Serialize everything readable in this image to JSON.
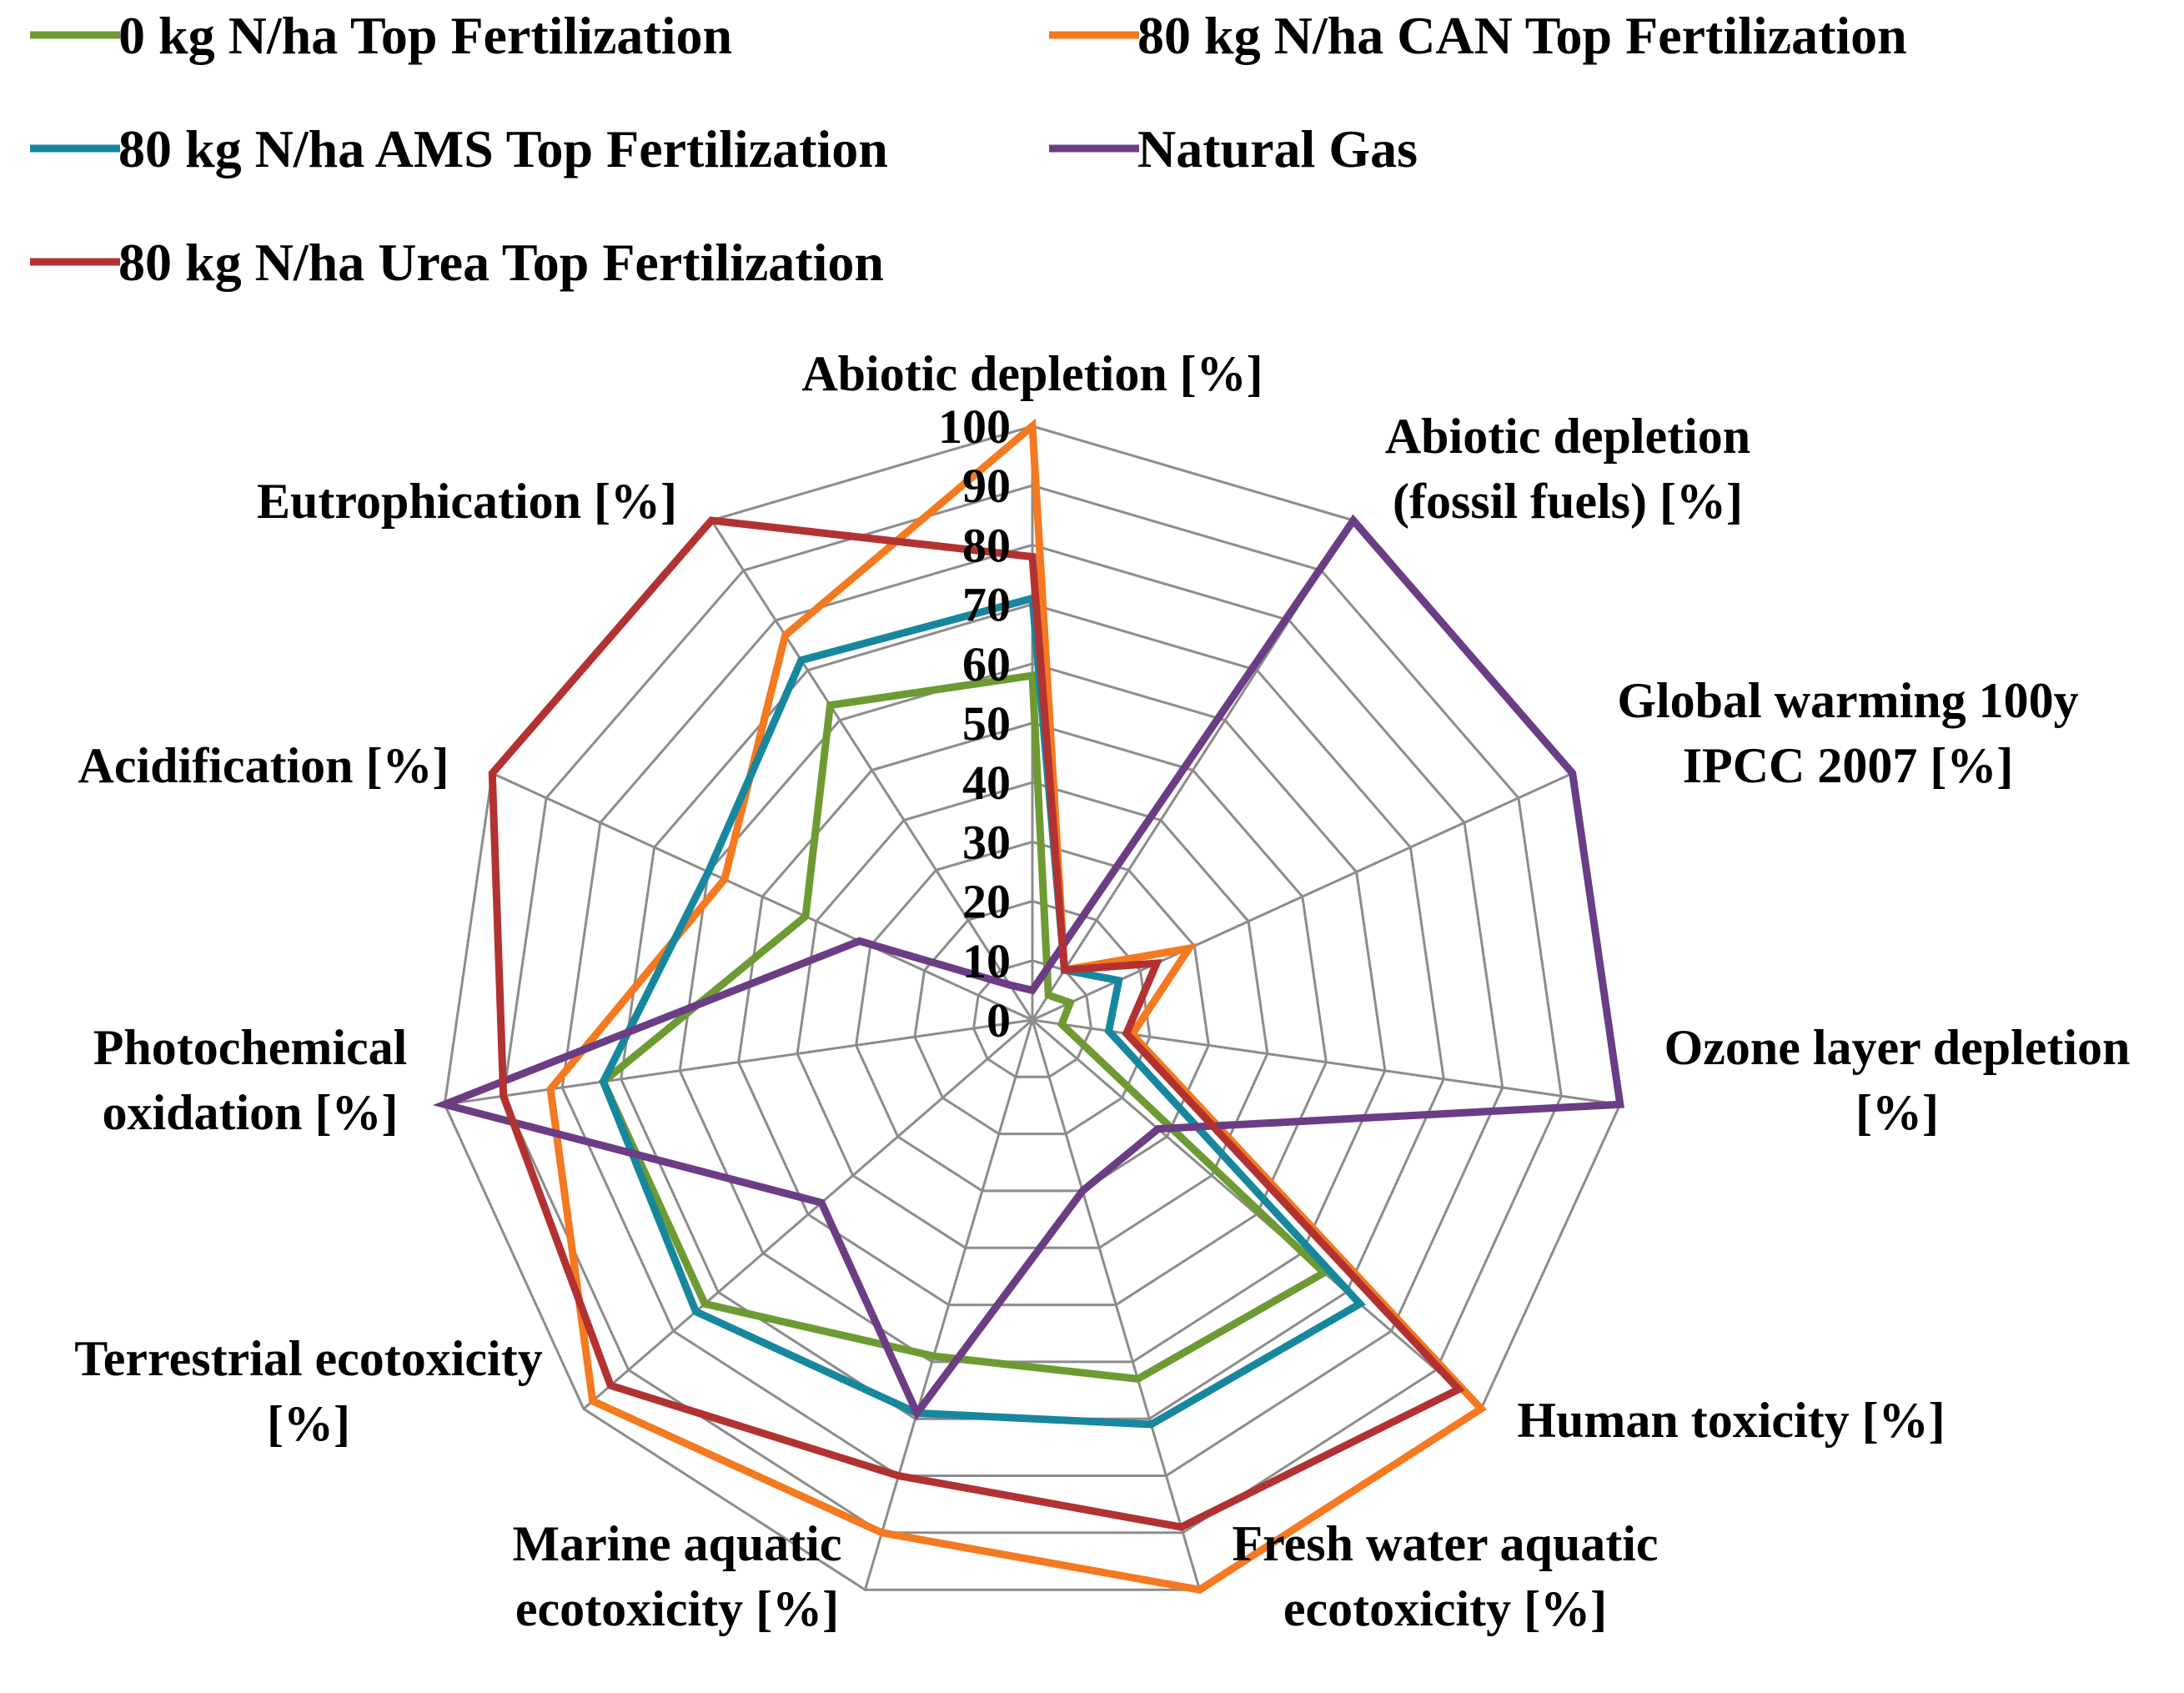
{
  "chart_data": {
    "type": "radar",
    "title": "",
    "axes": [
      "Abiotic depletion [%]",
      "Abiotic depletion (fossil fuels) [%]",
      "Global warming 100y IPCC 2007 [%]",
      "Ozone layer depletion [%]",
      "Human toxicity [%]",
      "Fresh water aquatic ecotoxicity [%]",
      "Marine aquatic ecotoxicity [%]",
      "Terrestrial ecotoxicity [%]",
      "Photochemical oxidation [%]",
      "Acidification [%]",
      "Eutrophication [%]"
    ],
    "axis_label_lines": [
      [
        "Abiotic depletion [%]"
      ],
      [
        "Abiotic depletion",
        "(fossil fuels) [%]"
      ],
      [
        "Global warming 100y",
        "IPCC 2007 [%]"
      ],
      [
        "Ozone layer depletion",
        "[%]"
      ],
      [
        "Human toxicity [%]"
      ],
      [
        "Fresh water aquatic",
        "ecotoxicity [%]"
      ],
      [
        "Marine aquatic",
        "ecotoxicity [%]"
      ],
      [
        "Terrestrial ecotoxicity",
        "[%]"
      ],
      [
        "Photochemical",
        "oxidation [%]"
      ],
      [
        "Acidification [%]"
      ],
      [
        "Eutrophication [%]"
      ]
    ],
    "r_ticks": [
      "0",
      "10",
      "20",
      "30",
      "40",
      "50",
      "60",
      "70",
      "80",
      "90",
      "100"
    ],
    "r_range": [
      0,
      100
    ],
    "grid": true,
    "legend_position": "top",
    "series": [
      {
        "name": "0 kg N/ha Top Fertilization",
        "color": "#6e9a34",
        "values": [
          58,
          5,
          7,
          5,
          65,
          63,
          59,
          73,
          73,
          42,
          63
        ]
      },
      {
        "name": "80 kg N/ha CAN Top Fertilization",
        "color": "#f47920",
        "values": [
          100,
          10,
          29,
          17,
          100,
          100,
          90,
          98,
          82,
          57,
          77
        ]
      },
      {
        "name": "80 kg N/ha AMS Top Fertilization",
        "color": "#17879e",
        "values": [
          71,
          10,
          16,
          13,
          73,
          71,
          69,
          75,
          73,
          60,
          72
        ]
      },
      {
        "name": "Natural Gas",
        "color": "#6b3d84",
        "values": [
          5,
          100,
          100,
          100,
          28,
          30,
          69,
          47,
          100,
          32,
          7
        ]
      },
      {
        "name": "80 kg N/ha Urea Top Fertilization",
        "color": "#b23232",
        "values": [
          78,
          10,
          23,
          16,
          95,
          89,
          80,
          94,
          90,
          100,
          100
        ]
      }
    ]
  },
  "legend_layout": [
    [
      0,
      1
    ],
    [
      2,
      3
    ],
    [
      4
    ]
  ]
}
